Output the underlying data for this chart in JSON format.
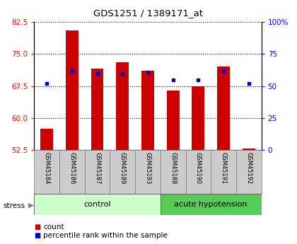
{
  "title": "GDS1251 / 1389171_at",
  "samples": [
    "GSM45184",
    "GSM45186",
    "GSM45187",
    "GSM45189",
    "GSM45193",
    "GSM45188",
    "GSM45190",
    "GSM45191",
    "GSM45192"
  ],
  "count_values": [
    57.5,
    80.5,
    71.5,
    73.0,
    71.0,
    66.5,
    67.5,
    72.0,
    52.8
  ],
  "percentile_values": [
    52,
    62,
    60,
    60,
    61,
    55,
    55,
    62,
    52
  ],
  "y_min": 52.5,
  "y_max": 82.5,
  "y_ticks": [
    52.5,
    60,
    67.5,
    75,
    82.5
  ],
  "y2_ticks": [
    0,
    25,
    50,
    75,
    100
  ],
  "bar_color": "#cc0000",
  "square_color": "#0000cc",
  "control_samples": 5,
  "groups": [
    {
      "label": "control",
      "count": 5,
      "color": "#ccffcc"
    },
    {
      "label": "acute hypotension",
      "count": 4,
      "color": "#55cc55"
    }
  ],
  "stress_label": "stress",
  "legend_count": "count",
  "legend_percentile": "percentile rank within the sample",
  "bg_color": "#ffffff",
  "bar_width": 0.5,
  "sample_bg_color": "#cccccc"
}
